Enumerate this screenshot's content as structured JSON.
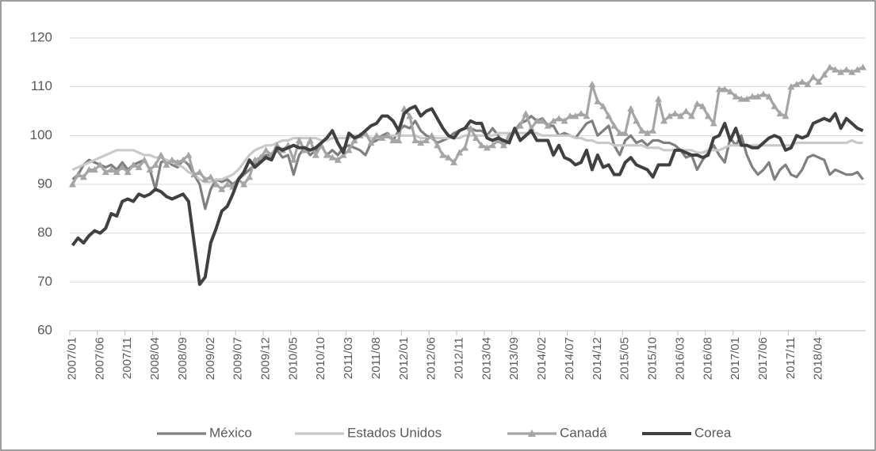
{
  "chart_data": {
    "type": "line",
    "categories": [
      "2007/01",
      null,
      null,
      null,
      null,
      "2007/06",
      null,
      null,
      null,
      null,
      "2007/11",
      null,
      null,
      null,
      null,
      "2008/04",
      null,
      null,
      null,
      null,
      "2008/09",
      null,
      null,
      null,
      null,
      "2009/02",
      null,
      null,
      null,
      null,
      "2009/07",
      null,
      null,
      null,
      null,
      "2009/12",
      null,
      null,
      null,
      null,
      "2010/05",
      null,
      null,
      null,
      null,
      "2010/10",
      null,
      null,
      null,
      null,
      "2011/03",
      null,
      null,
      null,
      null,
      "2011/08",
      null,
      null,
      null,
      null,
      "2012/01",
      null,
      null,
      null,
      null,
      "2012/06",
      null,
      null,
      null,
      null,
      "2012/11",
      null,
      null,
      null,
      null,
      "2013/04",
      null,
      null,
      null,
      null,
      "2013/09",
      null,
      null,
      null,
      null,
      "2014/02",
      null,
      null,
      null,
      null,
      "2014/07",
      null,
      null,
      null,
      null,
      "2014/12",
      null,
      null,
      null,
      null,
      "2015/05",
      null,
      null,
      null,
      null,
      "2015/10",
      null,
      null,
      null,
      null,
      "2016/03",
      null,
      null,
      null,
      null,
      "2016/08",
      null,
      null,
      null,
      null,
      "2017/01",
      null,
      null,
      null,
      null,
      "2017/06",
      null,
      null,
      null,
      null,
      "2017/11",
      null,
      null,
      null,
      null,
      "2018/04",
      null,
      null,
      null,
      null,
      null,
      null,
      null,
      null
    ],
    "series": [
      {
        "name": "México",
        "color": "#7f7f7f",
        "values": [
          91,
          92,
          94,
          95,
          94.5,
          94,
          93.5,
          94,
          93,
          94.5,
          93,
          94,
          94.5,
          95,
          93,
          89,
          94.5,
          95,
          94,
          93.5,
          95,
          94,
          92,
          90,
          85,
          89,
          91,
          90.5,
          91,
          90,
          91,
          92,
          93,
          94,
          95,
          96,
          96,
          97,
          95.5,
          96,
          92,
          96,
          97.5,
          96,
          97,
          98,
          96,
          97,
          96,
          97.5,
          98,
          97.5,
          97,
          96,
          98.5,
          99,
          100,
          100.5,
          99,
          101,
          102,
          101.5,
          103,
          101,
          100,
          99.5,
          98.5,
          99,
          99.5,
          100.5,
          101,
          101.5,
          101.5,
          101,
          101,
          100,
          101.5,
          100,
          98,
          99,
          101,
          102.5,
          103,
          104,
          103,
          103.5,
          102,
          102,
          100,
          100.5,
          100,
          99.5,
          101,
          102.5,
          103,
          100,
          101,
          102,
          98,
          96,
          99,
          100,
          98.5,
          99,
          98,
          99,
          99,
          98.5,
          98.5,
          98,
          97,
          95.5,
          96,
          93,
          95,
          96.5,
          98,
          96,
          94.5,
          99.5,
          98,
          100,
          96,
          93.5,
          92,
          93,
          94.5,
          91,
          93,
          94,
          92,
          91.5,
          93,
          95.5,
          96,
          95.5,
          95,
          92,
          93,
          92.5,
          92,
          92,
          92.5,
          91
        ]
      },
      {
        "name": "Estados Unidos",
        "color": "#c9c9c9",
        "values": [
          93,
          93.5,
          94,
          94.5,
          95,
          95.5,
          96,
          96.5,
          97,
          97,
          97,
          97,
          96.5,
          96,
          96,
          95.5,
          95.5,
          95,
          94.5,
          94,
          93.5,
          92.5,
          92,
          91,
          90.5,
          90.5,
          91,
          91,
          91.5,
          92,
          93,
          94.5,
          96,
          97,
          97.5,
          98,
          98,
          98.5,
          99,
          99,
          99.5,
          99.5,
          99.5,
          99.5,
          99.5,
          99,
          99,
          99.5,
          99.5,
          99.5,
          99.5,
          100,
          100,
          100,
          99.5,
          99.5,
          99.5,
          100,
          100,
          100,
          100,
          100,
          100,
          99.5,
          99.5,
          99.5,
          99.5,
          99.5,
          99.5,
          99.5,
          99.5,
          100,
          100,
          100,
          100,
          100,
          100,
          100.5,
          100.5,
          100.5,
          100.5,
          100.5,
          100.5,
          100.5,
          100.5,
          100,
          100,
          100,
          100,
          100,
          100,
          99.5,
          99.5,
          99,
          99,
          98.5,
          98.5,
          98.5,
          98,
          98,
          98,
          98,
          98,
          98,
          97.5,
          97.5,
          97.5,
          97,
          97,
          97,
          97,
          97,
          97,
          96.5,
          96.5,
          97,
          97,
          97,
          97.5,
          98,
          98,
          98,
          98,
          98,
          98,
          98,
          98,
          98,
          98,
          98,
          98,
          98.5,
          98.5,
          98.5,
          98.5,
          98.5,
          98.5,
          98.5,
          98.5,
          98.5,
          98.5,
          99,
          98.5,
          98.5
        ]
      },
      {
        "name": "Canadá",
        "color": "#a5a5a5",
        "marker": "triangle",
        "values": [
          90,
          92,
          91.5,
          93,
          93,
          94,
          92.5,
          93,
          92.5,
          93.5,
          92.5,
          94,
          93.5,
          95,
          93,
          94,
          96,
          94,
          95,
          94.5,
          95,
          96,
          92,
          92.5,
          91,
          91.5,
          90,
          89,
          90,
          89.5,
          91,
          90,
          91.5,
          95,
          95.5,
          97,
          96,
          98,
          97,
          98,
          95,
          99,
          97,
          99,
          96,
          98,
          96,
          95.5,
          95,
          96,
          97,
          99,
          100,
          100.5,
          98.5,
          100,
          99.5,
          100,
          99,
          99,
          105.5,
          104,
          99,
          98.5,
          99,
          100,
          98,
          96,
          95.5,
          94.5,
          96.5,
          97.5,
          101.5,
          99.5,
          98,
          97.5,
          98,
          99,
          98,
          100,
          101,
          102,
          104.5,
          101.5,
          103,
          103,
          102,
          103,
          103.5,
          103,
          104,
          104,
          104.5,
          104,
          110.5,
          107,
          106,
          104,
          102,
          100.5,
          100.5,
          105.5,
          103,
          101,
          100.5,
          101,
          107.5,
          103,
          104,
          104.5,
          104,
          105,
          104,
          106.5,
          106,
          104,
          102.5,
          109.5,
          109.5,
          109,
          108,
          107.5,
          107.5,
          108,
          108,
          108.5,
          108,
          106,
          104.5,
          104,
          110,
          110.5,
          111,
          110.5,
          112,
          111,
          112.5,
          114,
          113.5,
          113,
          113.5,
          113,
          113.5,
          114
        ]
      },
      {
        "name": "Corea",
        "color": "#404040",
        "values": [
          77.5,
          79,
          78,
          79.5,
          80.5,
          80,
          81,
          84,
          83.5,
          86.5,
          87,
          86.5,
          88,
          87.5,
          88,
          89,
          88.5,
          87.5,
          87,
          87.5,
          88,
          86.5,
          78,
          69.5,
          71,
          78,
          81,
          84.5,
          85.5,
          88,
          91,
          92.5,
          95,
          93.5,
          94.5,
          95.5,
          95,
          97.5,
          97,
          97.5,
          98,
          97.5,
          97.5,
          97,
          97.5,
          98.5,
          99.5,
          101,
          98.5,
          96.5,
          100.5,
          99.5,
          100,
          101,
          102,
          102.5,
          104,
          104,
          103,
          101,
          104.5,
          105.5,
          106,
          104,
          105,
          105.5,
          103.5,
          101.5,
          100,
          99.5,
          101,
          101.5,
          103,
          102.5,
          102.5,
          99.5,
          99,
          99.5,
          99,
          98.5,
          101.5,
          99,
          100,
          101,
          99,
          99,
          99,
          96,
          98,
          95.5,
          95,
          94,
          94.5,
          97,
          93,
          96,
          93.5,
          94,
          92,
          92,
          94.5,
          95.5,
          94,
          93.5,
          93,
          91.5,
          94,
          94,
          94,
          97,
          97,
          96.5,
          96,
          96,
          95.5,
          96,
          99.5,
          100,
          102.5,
          99,
          101.5,
          98,
          98,
          97.5,
          97.5,
          98.5,
          99.5,
          100,
          99.5,
          97,
          97.5,
          100,
          99.5,
          100,
          102.5,
          103,
          103.5,
          103,
          104.5,
          101.5,
          103.5,
          102.5,
          101.5,
          101
        ]
      }
    ],
    "ylim": [
      60,
      120
    ],
    "yticks": [
      60,
      70,
      80,
      90,
      100,
      110,
      120
    ],
    "grid": true,
    "legend": "bottom"
  }
}
